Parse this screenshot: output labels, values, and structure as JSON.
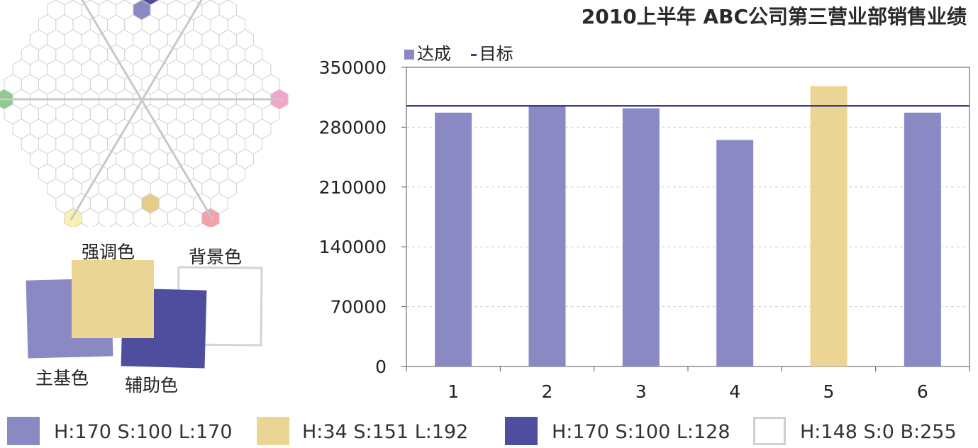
{
  "colors": {
    "primary": "#8a89c4",
    "accent": "#ebd594",
    "secondary": "#4f4e9e",
    "background": "#ffffff",
    "target_line": "#3a3d8c",
    "wheel_cyan": "#7fd3e2",
    "wheel_lavender": "#a9a8d8",
    "wheel_green": "#8ccc8c",
    "wheel_pink": "#f2a5c9",
    "wheel_yellow": "#f7f0b0",
    "wheel_gold": "#e6cc88",
    "wheel_red": "#f4a0a8"
  },
  "color_scheme_labels": {
    "accent": "强调色",
    "background": "背景色",
    "primary": "主基色",
    "secondary": "辅助色"
  },
  "palette": [
    {
      "color": "#8a89c4",
      "text": "H:170  S:100  L:170"
    },
    {
      "color": "#ebd594",
      "text": "H:34  S:151  L:192"
    },
    {
      "color": "#4f4e9e",
      "text": "H:170  S:100  L:128"
    },
    {
      "color": "#ffffff",
      "text": "H:148  S:0  B:255"
    }
  ],
  "chart_data": {
    "type": "bar",
    "title": "2010上半年 ABC公司第三营业部销售业绩",
    "categories": [
      "1",
      "2",
      "3",
      "4",
      "5",
      "6"
    ],
    "series": [
      {
        "name": "达成",
        "values": [
          297000,
          305000,
          302000,
          265000,
          328000,
          297000
        ]
      }
    ],
    "highlight_index": 4,
    "target": {
      "name": "目标",
      "value": 305000
    },
    "yticks": [
      "350000",
      "280000",
      "210000",
      "140000",
      "70000",
      "0"
    ],
    "ylim": [
      0,
      350000
    ],
    "grid": true,
    "legend_position": "top-left"
  }
}
